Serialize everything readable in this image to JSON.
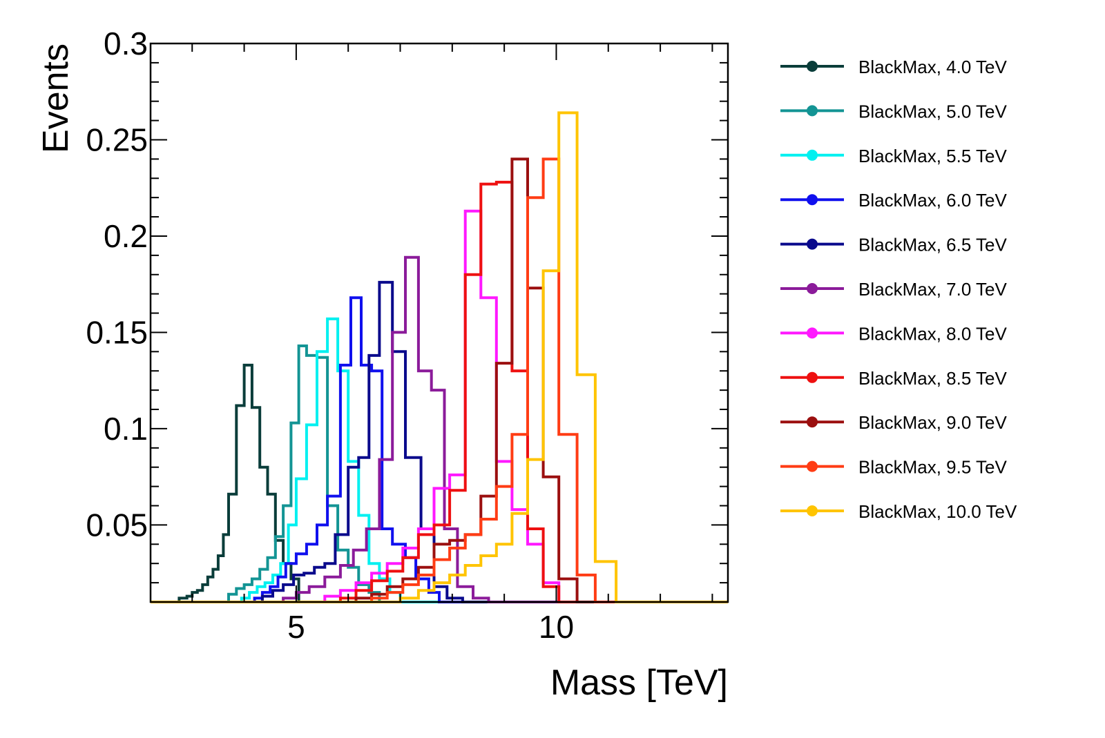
{
  "chart_data": {
    "type": "histogram",
    "title": "",
    "xlabel": "Mass [TeV]",
    "ylabel": "Events",
    "xlim": [
      2.2,
      13.3
    ],
    "ylim": [
      0.01,
      0.3
    ],
    "x_ticks": [
      5,
      10
    ],
    "x_tick_labels": [
      "5",
      "10"
    ],
    "y_ticks": [
      0.05,
      0.1,
      0.15,
      0.2,
      0.25,
      0.3
    ],
    "y_tick_labels": [
      "0.05",
      "0.1",
      "0.15",
      "0.2",
      "0.25",
      "0.3"
    ],
    "grid": false,
    "legend_position": "outside-right",
    "series": [
      {
        "name": "BlackMax, 4.0 TeV",
        "color": "#0a3d3a",
        "edges": [
          2.2,
          2.75,
          2.9,
          3.0,
          3.1,
          3.2,
          3.3,
          3.4,
          3.5,
          3.6,
          3.7,
          3.85,
          4.0,
          4.15,
          4.3,
          4.45,
          4.6,
          4.75,
          4.9,
          5.05,
          13.3
        ],
        "values": [
          0.01,
          0.012,
          0.013,
          0.015,
          0.016,
          0.019,
          0.023,
          0.027,
          0.034,
          0.045,
          0.066,
          0.112,
          0.133,
          0.111,
          0.08,
          0.066,
          0.042,
          0.03,
          0.022,
          0.01
        ]
      },
      {
        "name": "BlackMax, 5.0 TeV",
        "color": "#139494",
        "edges": [
          2.2,
          3.7,
          3.85,
          4.0,
          4.15,
          4.3,
          4.45,
          4.6,
          4.75,
          4.9,
          5.05,
          5.2,
          5.4,
          5.6,
          5.8,
          6.0,
          6.2,
          6.4,
          6.6,
          13.3
        ],
        "values": [
          0.01,
          0.014,
          0.017,
          0.019,
          0.022,
          0.027,
          0.033,
          0.044,
          0.06,
          0.103,
          0.143,
          0.138,
          0.137,
          0.06,
          0.037,
          0.028,
          0.019,
          0.015,
          0.01
        ]
      },
      {
        "name": "BlackMax, 5.5 TeV",
        "color": "#00f0f0",
        "edges": [
          2.2,
          3.95,
          4.1,
          4.25,
          4.4,
          4.55,
          4.7,
          4.85,
          5.0,
          5.2,
          5.4,
          5.6,
          5.8,
          6.0,
          6.2,
          6.4,
          6.6,
          6.8,
          7.0,
          13.3
        ],
        "values": [
          0.01,
          0.012,
          0.015,
          0.018,
          0.02,
          0.024,
          0.03,
          0.05,
          0.074,
          0.102,
          0.14,
          0.157,
          0.13,
          0.083,
          0.055,
          0.03,
          0.022,
          0.015,
          0.01
        ]
      },
      {
        "name": "BlackMax, 6.0 TeV",
        "color": "#1010ee",
        "edges": [
          2.2,
          4.2,
          4.35,
          4.5,
          4.65,
          4.8,
          5.0,
          5.2,
          5.4,
          5.6,
          5.85,
          6.05,
          6.25,
          6.45,
          6.65,
          6.85,
          7.1,
          7.3,
          7.55,
          7.75,
          13.3
        ],
        "values": [
          0.01,
          0.012,
          0.015,
          0.018,
          0.023,
          0.03,
          0.035,
          0.04,
          0.05,
          0.065,
          0.133,
          0.168,
          0.133,
          0.13,
          0.048,
          0.04,
          0.033,
          0.022,
          0.015,
          0.01
        ]
      },
      {
        "name": "BlackMax, 6.5 TeV",
        "color": "#0a0a8c",
        "edges": [
          2.2,
          4.35,
          4.55,
          4.75,
          4.95,
          5.15,
          5.35,
          5.55,
          5.75,
          6.0,
          6.2,
          6.4,
          6.6,
          6.85,
          7.1,
          7.4,
          7.65,
          7.9,
          8.2,
          13.3
        ],
        "values": [
          0.01,
          0.013,
          0.016,
          0.019,
          0.024,
          0.025,
          0.028,
          0.03,
          0.045,
          0.08,
          0.085,
          0.138,
          0.176,
          0.14,
          0.085,
          0.048,
          0.018,
          0.012,
          0.01
        ]
      },
      {
        "name": "BlackMax, 7.0 TeV",
        "color": "#8b1b9a",
        "edges": [
          2.2,
          4.75,
          5.0,
          5.25,
          5.55,
          5.85,
          6.1,
          6.35,
          6.6,
          6.85,
          7.1,
          7.35,
          7.6,
          7.85,
          8.1,
          8.4,
          8.7,
          13.3
        ],
        "values": [
          0.01,
          0.012,
          0.015,
          0.018,
          0.023,
          0.029,
          0.037,
          0.048,
          0.084,
          0.15,
          0.189,
          0.13,
          0.12,
          0.048,
          0.018,
          0.012,
          0.01
        ]
      },
      {
        "name": "BlackMax, 8.0 TeV",
        "color": "#ff18ff",
        "edges": [
          2.2,
          5.55,
          5.85,
          6.15,
          6.45,
          6.75,
          7.05,
          7.35,
          7.65,
          7.95,
          8.25,
          8.55,
          8.85,
          9.15,
          9.45,
          9.75,
          10.05,
          13.3
        ],
        "values": [
          0.01,
          0.013,
          0.016,
          0.02,
          0.025,
          0.03,
          0.038,
          0.048,
          0.069,
          0.076,
          0.213,
          0.168,
          0.083,
          0.058,
          0.04,
          0.02,
          0.01
        ]
      },
      {
        "name": "BlackMax, 8.5 TeV",
        "color": "#ee1010",
        "edges": [
          2.2,
          5.85,
          6.15,
          6.45,
          6.75,
          7.05,
          7.35,
          7.65,
          7.95,
          8.25,
          8.55,
          8.85,
          9.15,
          9.45,
          9.75,
          10.05,
          13.3
        ],
        "values": [
          0.01,
          0.012,
          0.016,
          0.021,
          0.026,
          0.033,
          0.045,
          0.05,
          0.068,
          0.18,
          0.227,
          0.228,
          0.13,
          0.048,
          0.018,
          0.01
        ]
      },
      {
        "name": "BlackMax, 9.0 TeV",
        "color": "#9b0f0f",
        "edges": [
          2.2,
          6.15,
          6.45,
          6.75,
          7.05,
          7.35,
          7.65,
          7.95,
          8.25,
          8.55,
          8.85,
          9.15,
          9.45,
          9.75,
          10.05,
          10.4,
          13.3
        ],
        "values": [
          0.01,
          0.012,
          0.014,
          0.018,
          0.022,
          0.028,
          0.04,
          0.042,
          0.045,
          0.065,
          0.134,
          0.24,
          0.173,
          0.075,
          0.022,
          0.01
        ]
      },
      {
        "name": "BlackMax, 9.5 TeV",
        "color": "#ff3c14",
        "edges": [
          2.2,
          6.45,
          6.75,
          7.05,
          7.35,
          7.65,
          7.95,
          8.25,
          8.55,
          8.85,
          9.15,
          9.45,
          9.75,
          10.05,
          10.4,
          10.75,
          13.3
        ],
        "values": [
          0.01,
          0.012,
          0.015,
          0.019,
          0.024,
          0.032,
          0.038,
          0.045,
          0.053,
          0.07,
          0.097,
          0.22,
          0.24,
          0.097,
          0.024,
          0.01
        ]
      },
      {
        "name": "BlackMax, 10.0 TeV",
        "color": "#ffc400",
        "edges": [
          2.2,
          7.0,
          7.35,
          7.65,
          7.95,
          8.25,
          8.55,
          8.85,
          9.15,
          9.45,
          9.75,
          10.05,
          10.4,
          10.75,
          11.15,
          13.3
        ],
        "values": [
          0.01,
          0.012,
          0.016,
          0.02,
          0.024,
          0.029,
          0.034,
          0.04,
          0.056,
          0.084,
          0.182,
          0.264,
          0.128,
          0.031,
          0.01
        ]
      }
    ]
  }
}
